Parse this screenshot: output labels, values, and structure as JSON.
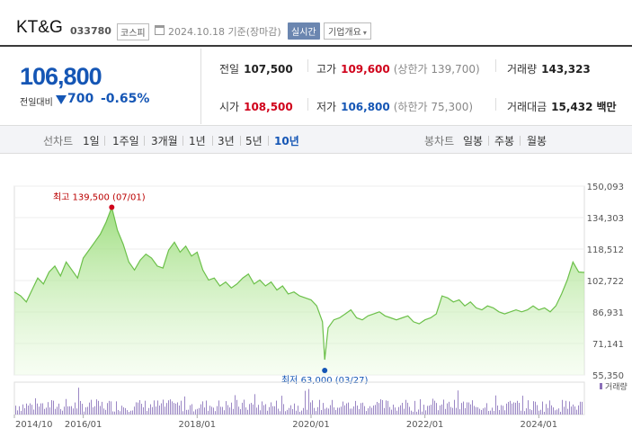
{
  "header": {
    "name": "KT&G",
    "code": "033780",
    "market": "코스피",
    "date": "2024.10.18",
    "date_suffix": "기준(장마감)",
    "realtime": "실시간",
    "company_info": "기업개요"
  },
  "price": {
    "current": "106,800",
    "change_label": "전일대비",
    "change": "700",
    "change_pct": "-0.65%"
  },
  "stats": {
    "prev_label": "전일",
    "prev": "107,500",
    "high_label": "고가",
    "high": "109,600",
    "upper_label": "(상한가",
    "upper": "139,700)",
    "volume_label": "거래량",
    "volume": "143,323",
    "open_label": "시가",
    "open": "108,500",
    "low_label": "저가",
    "low": "106,800",
    "lower_label": "(하한가",
    "lower": "75,300)",
    "amount_label": "거래대금",
    "amount": "15,432",
    "amount_unit": "백만"
  },
  "tabs": {
    "line_label": "선차트",
    "periods": [
      "1일",
      "1주일",
      "3개월",
      "1년",
      "3년",
      "5년",
      "10년"
    ],
    "active_period": "10년",
    "candle_label": "봉차트",
    "candles": [
      "일봉",
      "주봉",
      "월봉"
    ]
  },
  "chart_data": {
    "type": "area",
    "y_ticks": [
      "150,093",
      "134,303",
      "118,512",
      "102,722",
      "86,931",
      "71,141",
      "55,350"
    ],
    "ylim": [
      55350,
      150093
    ],
    "x_ticks": [
      "2014/10",
      "2016/01",
      "2018/01",
      "2020/01",
      "2022/01",
      "2024/01"
    ],
    "x_tick_years": [
      2014.79,
      2016.0,
      2018.0,
      2020.0,
      2022.0,
      2024.0
    ],
    "xlim": [
      2014.79,
      2024.8
    ],
    "high_annotation": "최고 139,500 (07/01)",
    "high_point": {
      "x": 2016.5,
      "y": 139500
    },
    "low_annotation": "최저 63,000 (03/27)",
    "low_point": {
      "x": 2020.24,
      "y": 63000
    },
    "volume_legend": "거래량",
    "series": [
      {
        "x": [
          2014.79,
          2014.9,
          2015.0,
          2015.1,
          2015.2,
          2015.3,
          2015.4,
          2015.5,
          2015.6,
          2015.7,
          2015.8,
          2015.9,
          2016.0,
          2016.1,
          2016.2,
          2016.3,
          2016.4,
          2016.5,
          2016.6,
          2016.7,
          2016.8,
          2016.9,
          2017.0,
          2017.1,
          2017.2,
          2017.3,
          2017.4,
          2017.5,
          2017.6,
          2017.7,
          2017.8,
          2017.9,
          2018.0,
          2018.1,
          2018.2,
          2018.3,
          2018.4,
          2018.5,
          2018.6,
          2018.7,
          2018.8,
          2018.9,
          2019.0,
          2019.1,
          2019.2,
          2019.3,
          2019.4,
          2019.5,
          2019.6,
          2019.7,
          2019.8,
          2019.9,
          2020.0,
          2020.1,
          2020.2,
          2020.24,
          2020.3,
          2020.4,
          2020.5,
          2020.6,
          2020.7,
          2020.8,
          2020.9,
          2021.0,
          2021.1,
          2021.2,
          2021.3,
          2021.4,
          2021.5,
          2021.6,
          2021.7,
          2021.8,
          2021.9,
          2022.0,
          2022.1,
          2022.2,
          2022.3,
          2022.4,
          2022.5,
          2022.6,
          2022.7,
          2022.8,
          2022.9,
          2023.0,
          2023.1,
          2023.2,
          2023.3,
          2023.4,
          2023.5,
          2023.6,
          2023.7,
          2023.8,
          2023.9,
          2024.0,
          2024.1,
          2024.2,
          2024.3,
          2024.4,
          2024.5,
          2024.6,
          2024.7,
          2024.8
        ],
        "y": [
          97000,
          95000,
          92000,
          98000,
          104000,
          101000,
          107000,
          110000,
          105000,
          112000,
          108000,
          104000,
          114000,
          118000,
          122000,
          126000,
          132000,
          139500,
          128000,
          121000,
          112000,
          108000,
          113000,
          116000,
          114000,
          110000,
          109000,
          118000,
          122000,
          117000,
          120000,
          115000,
          117000,
          108000,
          103000,
          104000,
          100000,
          102000,
          99000,
          101000,
          104000,
          106000,
          101000,
          103000,
          100000,
          102000,
          98000,
          100000,
          96000,
          97000,
          95000,
          94000,
          93000,
          90000,
          82000,
          63000,
          79000,
          83000,
          84000,
          86000,
          88000,
          84000,
          83000,
          85000,
          86000,
          87000,
          85000,
          84000,
          83000,
          84000,
          85000,
          82000,
          81000,
          83000,
          84000,
          86000,
          95000,
          94000,
          92000,
          93000,
          90000,
          92000,
          89000,
          88000,
          90000,
          89000,
          87000,
          86000,
          87000,
          88000,
          87000,
          88000,
          90000,
          88000,
          89000,
          87000,
          90000,
          96000,
          103000,
          112000,
          107000,
          106800
        ]
      }
    ]
  }
}
